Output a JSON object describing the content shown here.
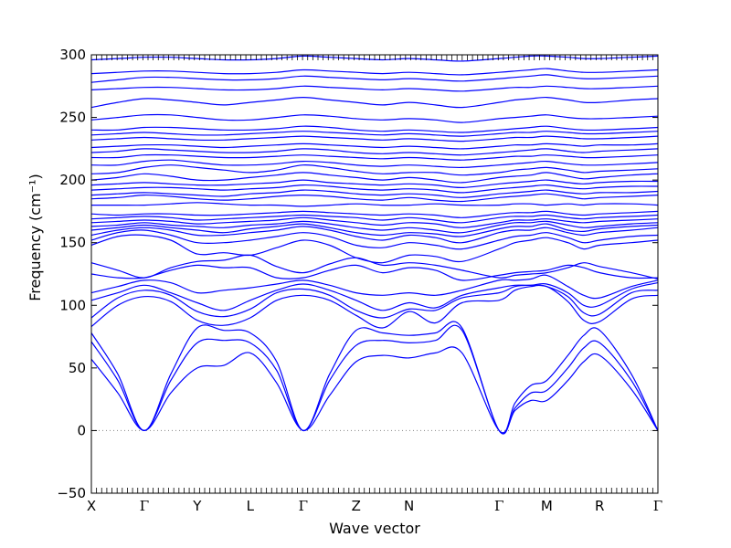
{
  "chart_data": {
    "type": "line",
    "xlabel": "Wave vector",
    "ylabel": "Frequency (cm⁻¹)",
    "ylim": [
      -50,
      300
    ],
    "y_ticks": [
      -50,
      0,
      50,
      100,
      150,
      200,
      250,
      300
    ],
    "zero_line": {
      "y": 0,
      "style": "dotted",
      "color": "#888888"
    },
    "line_color": "#0000ff",
    "grid": false,
    "x_labels": [
      "X",
      "Γ",
      "Y",
      "L",
      "Γ",
      "Z",
      "N",
      "Γ",
      "M",
      "R",
      "Γ"
    ],
    "x_label_positions": [
      0,
      1,
      2,
      3,
      4,
      5,
      6,
      7.7,
      8.6,
      9.6,
      10.7
    ],
    "x_range": [
      0,
      10.7
    ],
    "acoustic_branches": [
      {
        "name": "",
        "x": [
          0,
          0.5,
          1,
          1.5,
          2,
          2.5,
          3,
          3.5,
          4,
          4.5,
          5,
          5.5,
          6,
          6.5,
          7,
          7.7,
          8,
          8.3,
          8.6,
          9,
          9.3,
          9.6,
          10.2,
          10.7
        ],
        "values": [
          57,
          30,
          0,
          30,
          50,
          52,
          62,
          38,
          0,
          28,
          55,
          60,
          58,
          62,
          62,
          0,
          16,
          24,
          24,
          40,
          55,
          60,
          33,
          0
        ]
      },
      {
        "name": "",
        "x": [
          0,
          0.5,
          1,
          1.5,
          2,
          2.5,
          3,
          3.5,
          4,
          4.5,
          5,
          5.5,
          6,
          6.5,
          7,
          7.7,
          8,
          8.3,
          8.6,
          9,
          9.3,
          9.6,
          10.2,
          10.7
        ],
        "values": [
          71,
          40,
          0,
          40,
          70,
          72,
          70,
          48,
          0,
          40,
          68,
          72,
          70,
          72,
          80,
          0,
          18,
          30,
          32,
          50,
          66,
          70,
          40,
          0
        ]
      },
      {
        "name": "",
        "x": [
          0,
          0.5,
          1,
          1.5,
          2,
          2.5,
          3,
          3.5,
          4,
          4.5,
          5,
          5.5,
          6,
          6.5,
          7,
          7.7,
          8,
          8.3,
          8.6,
          9,
          9.3,
          9.6,
          10.2,
          10.7
        ],
        "values": [
          78,
          45,
          0,
          45,
          82,
          80,
          78,
          55,
          0,
          45,
          80,
          78,
          76,
          78,
          82,
          0,
          22,
          36,
          40,
          60,
          76,
          80,
          45,
          0
        ]
      }
    ],
    "optical_branches": [
      {
        "name": "",
        "values": [
          83,
          100,
          107,
          103,
          88,
          84,
          90,
          104,
          108,
          104,
          92,
          82,
          95,
          86,
          102,
          104,
          112,
          115,
          115,
          103,
          88,
          87,
          105,
          108
        ]
      },
      {
        "name": "",
        "values": [
          90,
          106,
          112,
          108,
          95,
          91,
          97,
          110,
          113,
          108,
          96,
          90,
          97,
          96,
          106,
          110,
          115,
          116,
          115,
          107,
          94,
          93,
          110,
          112
        ]
      },
      {
        "name": "",
        "values": [
          104,
          110,
          116,
          110,
          102,
          96,
          104,
          112,
          117,
          112,
          104,
          96,
          102,
          98,
          108,
          114,
          116,
          116,
          117,
          110,
          100,
          100,
          113,
          118
        ]
      },
      {
        "name": "",
        "values": [
          110,
          115,
          120,
          118,
          110,
          112,
          114,
          117,
          120,
          116,
          110,
          108,
          110,
          108,
          112,
          120,
          120,
          121,
          124,
          115,
          108,
          106,
          115,
          120
        ]
      },
      {
        "name": "",
        "values": [
          125,
          122,
          122,
          128,
          132,
          130,
          130,
          122,
          122,
          128,
          132,
          126,
          130,
          128,
          120,
          124,
          126,
          127,
          128,
          132,
          130,
          126,
          122,
          122
        ]
      },
      {
        "name": "",
        "values": [
          134,
          128,
          122,
          130,
          135,
          136,
          140,
          131,
          126,
          133,
          138,
          132,
          134,
          132,
          128,
          122,
          124,
          125,
          126,
          130,
          134,
          131,
          126,
          121
        ]
      },
      {
        "name": "",
        "values": [
          148,
          155,
          156,
          152,
          141,
          142,
          140,
          146,
          152,
          148,
          138,
          134,
          140,
          139,
          135,
          145,
          150,
          152,
          154,
          150,
          145,
          148,
          150,
          152
        ]
      },
      {
        "name": "",
        "values": [
          152,
          158,
          160,
          156,
          150,
          150,
          152,
          155,
          158,
          155,
          148,
          146,
          150,
          148,
          145,
          152,
          155,
          156,
          158,
          154,
          150,
          152,
          155,
          156
        ]
      },
      {
        "name": "",
        "values": [
          156,
          160,
          162,
          160,
          156,
          156,
          158,
          160,
          163,
          160,
          155,
          152,
          156,
          154,
          150,
          158,
          160,
          160,
          162,
          158,
          156,
          158,
          160,
          162
        ]
      },
      {
        "name": "",
        "values": [
          160,
          162,
          164,
          162,
          160,
          158,
          161,
          163,
          165,
          162,
          158,
          156,
          158,
          157,
          155,
          161,
          163,
          163,
          165,
          160,
          159,
          161,
          163,
          164
        ]
      },
      {
        "name": "",
        "values": [
          163,
          164,
          166,
          164,
          163,
          162,
          164,
          165,
          167,
          165,
          162,
          160,
          162,
          160,
          158,
          164,
          166,
          166,
          167,
          164,
          162,
          163,
          165,
          166
        ]
      },
      {
        "name": "",
        "values": [
          166,
          167,
          168,
          167,
          165,
          166,
          167,
          168,
          170,
          168,
          166,
          164,
          166,
          165,
          162,
          166,
          168,
          168,
          169,
          167,
          166,
          167,
          168,
          169
        ]
      },
      {
        "name": "",
        "values": [
          169,
          170,
          171,
          170,
          168,
          169,
          170,
          171,
          172,
          171,
          170,
          168,
          170,
          168,
          166,
          170,
          171,
          171,
          172,
          170,
          169,
          170,
          171,
          172
        ]
      },
      {
        "name": "",
        "values": [
          173,
          172,
          173,
          173,
          172,
          172,
          173,
          174,
          175,
          174,
          173,
          172,
          173,
          172,
          170,
          173,
          174,
          174,
          175,
          173,
          172,
          173,
          174,
          175
        ]
      },
      {
        "name": "",
        "values": [
          180,
          180,
          180,
          181,
          182,
          181,
          180,
          180,
          179,
          180,
          181,
          180,
          180,
          181,
          180,
          180,
          181,
          181,
          180,
          181,
          180,
          181,
          181,
          180
        ]
      },
      {
        "name": "",
        "values": [
          185,
          186,
          188,
          187,
          185,
          184,
          185,
          187,
          188,
          187,
          185,
          184,
          186,
          184,
          183,
          186,
          187,
          188,
          189,
          187,
          185,
          186,
          187,
          188
        ]
      },
      {
        "name": "",
        "values": [
          188,
          189,
          190,
          189,
          188,
          187,
          189,
          190,
          192,
          191,
          189,
          188,
          189,
          188,
          186,
          189,
          190,
          191,
          192,
          190,
          189,
          190,
          190,
          191
        ]
      },
      {
        "name": "",
        "values": [
          192,
          193,
          194,
          194,
          193,
          192,
          193,
          194,
          196,
          195,
          193,
          192,
          193,
          192,
          190,
          193,
          194,
          195,
          196,
          194,
          193,
          194,
          195,
          195
        ]
      },
      {
        "name": "",
        "values": [
          196,
          197,
          198,
          197,
          196,
          196,
          197,
          198,
          200,
          198,
          197,
          196,
          197,
          196,
          194,
          197,
          198,
          199,
          200,
          198,
          197,
          198,
          199,
          199
        ]
      },
      {
        "name": "",
        "values": [
          200,
          202,
          205,
          203,
          200,
          200,
          202,
          204,
          206,
          204,
          202,
          200,
          202,
          200,
          198,
          202,
          203,
          204,
          206,
          203,
          201,
          202,
          204,
          205
        ]
      },
      {
        "name": "",
        "values": [
          205,
          206,
          210,
          212,
          210,
          208,
          206,
          208,
          212,
          210,
          207,
          205,
          206,
          206,
          204,
          206,
          208,
          209,
          210,
          208,
          206,
          207,
          208,
          209
        ]
      },
      {
        "name": "",
        "values": [
          212,
          212,
          215,
          216,
          214,
          212,
          212,
          213,
          215,
          214,
          212,
          211,
          212,
          211,
          210,
          212,
          213,
          214,
          215,
          213,
          212,
          212,
          213,
          214
        ]
      },
      {
        "name": "",
        "values": [
          218,
          218,
          220,
          220,
          219,
          218,
          218,
          219,
          220,
          219,
          218,
          217,
          218,
          217,
          216,
          218,
          219,
          219,
          220,
          219,
          218,
          218,
          219,
          220
        ]
      },
      {
        "name": "",
        "values": [
          222,
          223,
          225,
          224,
          223,
          222,
          222,
          223,
          225,
          224,
          222,
          221,
          222,
          221,
          220,
          222,
          223,
          224,
          225,
          223,
          222,
          223,
          224,
          225
        ]
      },
      {
        "name": "",
        "values": [
          226,
          227,
          228,
          228,
          227,
          226,
          227,
          228,
          229,
          228,
          227,
          226,
          227,
          226,
          225,
          227,
          228,
          228,
          229,
          228,
          227,
          228,
          228,
          229
        ]
      },
      {
        "name": "",
        "values": [
          232,
          233,
          234,
          233,
          232,
          232,
          233,
          234,
          235,
          234,
          233,
          232,
          233,
          232,
          231,
          233,
          234,
          234,
          235,
          234,
          233,
          233,
          234,
          235
        ]
      },
      {
        "name": "",
        "values": [
          236,
          237,
          238,
          237,
          236,
          236,
          237,
          238,
          239,
          238,
          237,
          236,
          237,
          236,
          235,
          237,
          238,
          238,
          239,
          238,
          237,
          237,
          238,
          239
        ]
      },
      {
        "name": "",
        "values": [
          240,
          240,
          242,
          242,
          241,
          240,
          240,
          241,
          243,
          242,
          240,
          239,
          240,
          239,
          238,
          240,
          241,
          242,
          243,
          241,
          240,
          240,
          241,
          242
        ]
      },
      {
        "name": "",
        "values": [
          248,
          250,
          252,
          252,
          250,
          248,
          248,
          250,
          252,
          251,
          249,
          248,
          249,
          248,
          246,
          249,
          250,
          251,
          252,
          250,
          249,
          249,
          250,
          251
        ]
      },
      {
        "name": "",
        "values": [
          258,
          262,
          265,
          264,
          262,
          260,
          262,
          264,
          266,
          264,
          262,
          260,
          262,
          260,
          258,
          262,
          264,
          265,
          266,
          264,
          262,
          262,
          264,
          265
        ]
      },
      {
        "name": "",
        "values": [
          272,
          273,
          274,
          274,
          273,
          272,
          272,
          273,
          275,
          274,
          273,
          272,
          273,
          272,
          271,
          273,
          274,
          274,
          275,
          274,
          273,
          273,
          274,
          275
        ]
      },
      {
        "name": "",
        "values": [
          278,
          280,
          282,
          282,
          281,
          280,
          280,
          281,
          283,
          282,
          281,
          280,
          281,
          280,
          279,
          281,
          282,
          283,
          284,
          282,
          281,
          281,
          282,
          283
        ]
      },
      {
        "name": "",
        "values": [
          285,
          286,
          287,
          287,
          286,
          285,
          285,
          286,
          288,
          287,
          286,
          285,
          286,
          285,
          284,
          286,
          287,
          288,
          289,
          287,
          286,
          286,
          287,
          288
        ]
      },
      {
        "name": "",
        "values": [
          296,
          297,
          298,
          298,
          297,
          296,
          296,
          297,
          299,
          298,
          297,
          296,
          297,
          296,
          295,
          297,
          298,
          299,
          299,
          298,
          297,
          297,
          298,
          299
        ]
      }
    ]
  }
}
